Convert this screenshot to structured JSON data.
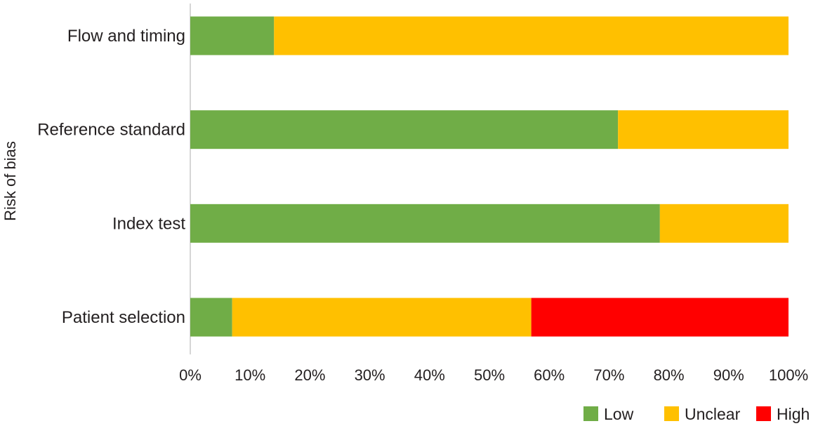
{
  "chart_data": {
    "type": "bar",
    "orientation": "horizontal",
    "stacked": true,
    "categories": [
      "Patient selection",
      "Index test",
      "Reference standard",
      "Flow and timing"
    ],
    "series": [
      {
        "name": "Low",
        "color": "#70ad47",
        "values": [
          7,
          78.5,
          71.5,
          14
        ]
      },
      {
        "name": "Unclear",
        "color": "#ffc000",
        "values": [
          50,
          21.5,
          28.5,
          86
        ]
      },
      {
        "name": "High",
        "color": "#ff0000",
        "values": [
          43,
          0,
          0,
          0
        ]
      }
    ],
    "xlim": [
      0,
      100
    ],
    "xticks": [
      "0%",
      "10%",
      "20%",
      "30%",
      "40%",
      "50%",
      "60%",
      "70%",
      "80%",
      "90%",
      "100%"
    ],
    "xtick_values": [
      0,
      10,
      20,
      30,
      40,
      50,
      60,
      70,
      80,
      90,
      100
    ],
    "ylabel": "Risk of bias",
    "xlabel": "",
    "grid": false,
    "legend_position": "bottom-right"
  }
}
